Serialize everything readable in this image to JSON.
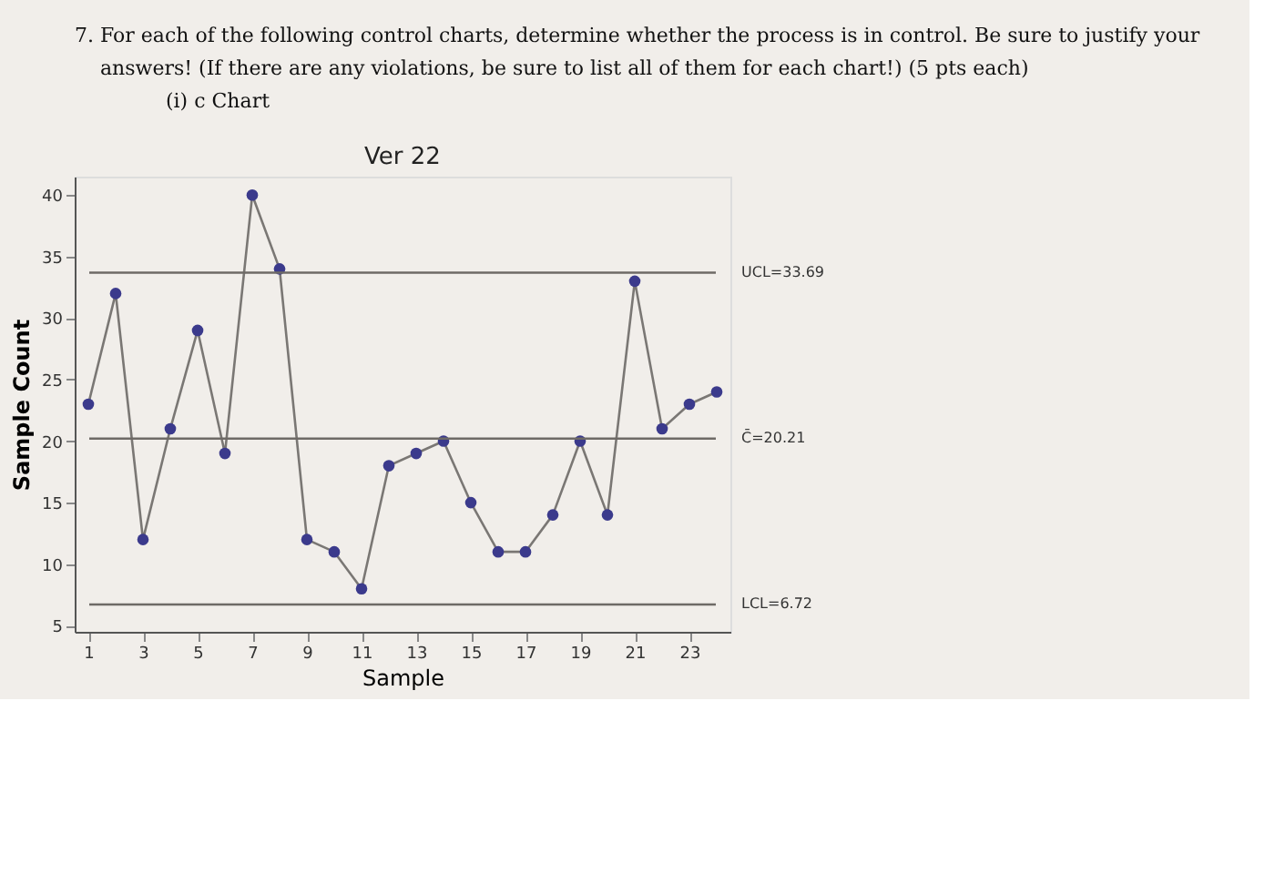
{
  "chart_data": {
    "type": "line",
    "title": "Ver 22",
    "xlabel": "Sample",
    "ylabel": "Sample Count",
    "annotations": [
      "7. For each of the following control charts, determine whether the process is in control. Be sure to justify your",
      "answers! (If there are any violations, be sure to list all of them for each chart!) (5 pts each)",
      "(i) c Chart"
    ],
    "x": [
      1,
      2,
      3,
      4,
      5,
      6,
      7,
      8,
      9,
      10,
      11,
      12,
      13,
      14,
      15,
      16,
      17,
      18,
      19,
      20,
      21,
      22,
      23,
      24
    ],
    "series": [
      {
        "color": "#3b3a8c",
        "values": [
          23,
          32,
          12,
          21,
          29,
          19,
          40,
          34,
          12,
          11,
          8,
          18,
          19,
          20,
          15,
          11,
          11,
          14,
          20,
          14,
          33,
          21,
          23,
          24
        ]
      }
    ],
    "xlim": [
      0.5,
      24.5
    ],
    "xticks": [
      1,
      3,
      5,
      7,
      9,
      11,
      13,
      15,
      17,
      19,
      21,
      23
    ],
    "ylim": [
      4.5,
      41.5
    ],
    "yticks": [
      5,
      10,
      15,
      20,
      25,
      30,
      35,
      40
    ],
    "ref_lines": [
      {
        "axis": "y",
        "value": 33.69,
        "label": "UCL=33.69",
        "color": "#6e6a66"
      },
      {
        "axis": "y",
        "value": 20.21,
        "label": "C̄=20.21",
        "color": "#6e6a66"
      },
      {
        "axis": "y",
        "value": 6.72,
        "label": "LCL=6.72",
        "color": "#6e6a66"
      }
    ],
    "marker": "circle",
    "line_style": "solid",
    "grid": false
  }
}
